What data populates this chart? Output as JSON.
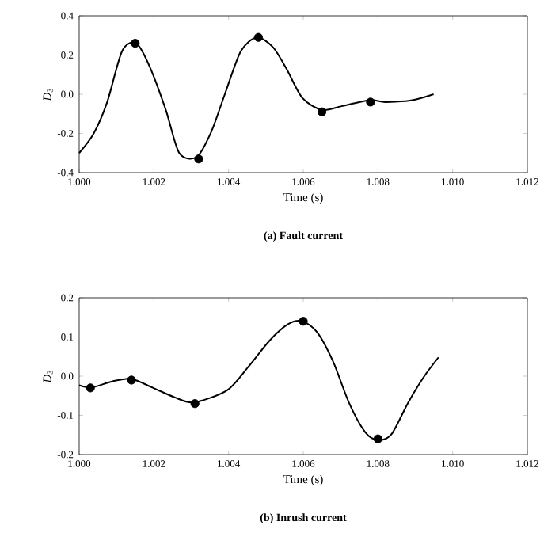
{
  "chart_data": [
    {
      "type": "line",
      "title": "(a) Fault current",
      "xlabel": "Time (s)",
      "ylabel": "*D*$_{3}$",
      "xlim": [
        1.0,
        1.012
      ],
      "ylim": [
        -0.4,
        0.4
      ],
      "xticks": [
        {
          "value": 1.0,
          "label": "1.000"
        },
        {
          "value": 1.002,
          "label": "1.002"
        },
        {
          "value": 1.004,
          "label": "1.004"
        },
        {
          "value": 1.006,
          "label": "1.006"
        },
        {
          "value": 1.008,
          "label": "1.008"
        },
        {
          "value": 1.01,
          "label": "1.010"
        },
        {
          "value": 1.012,
          "label": "1.012"
        }
      ],
      "yticks": [
        -0.4,
        -0.2,
        {
          "value": 0,
          "label": "0.0"
        },
        0.2,
        0.4
      ],
      "series": [
        {
          "color": "#000000",
          "x": [
            1.0,
            1.00039,
            1.00075,
            1.00115,
            1.00153,
            1.00189,
            1.00232,
            1.00268,
            1.00315,
            1.00354,
            1.0039,
            1.00433,
            1.00476,
            1.00519,
            1.00555,
            1.00598,
            1.00651,
            1.00705,
            1.00777,
            1.0082,
            1.00892,
            1.00949
          ],
          "values": [
            -0.3,
            -0.2,
            -0.04,
            0.22,
            0.26,
            0.14,
            -0.08,
            -0.3,
            -0.32,
            -0.19,
            0.0,
            0.22,
            0.29,
            0.24,
            0.13,
            -0.02,
            -0.08,
            -0.06,
            -0.03,
            -0.04,
            -0.03,
            0.0
          ]
        },
        {
          "type": "scatter",
          "color": "#000000",
          "marker": "circle",
          "x": [
            1.0015,
            1.0032,
            1.0048,
            1.0065,
            1.0078
          ],
          "values": [
            0.26,
            -0.33,
            0.29,
            -0.09,
            -0.04
          ]
        }
      ]
    },
    {
      "type": "line",
      "title": "(b) Inrush current",
      "xlabel": "Time (s)",
      "ylabel": "*D*$_{3}$",
      "xlim": [
        1.0,
        1.012
      ],
      "ylim": [
        -0.2,
        0.2
      ],
      "xticks": [
        {
          "value": 1.0,
          "label": "1.000"
        },
        {
          "value": 1.002,
          "label": "1.002"
        },
        {
          "value": 1.004,
          "label": "1.004"
        },
        {
          "value": 1.006,
          "label": "1.006"
        },
        {
          "value": 1.008,
          "label": "1.008"
        },
        {
          "value": 1.01,
          "label": "1.010"
        },
        {
          "value": 1.012,
          "label": "1.012"
        }
      ],
      "yticks": [
        -0.2,
        -0.1,
        {
          "value": 0,
          "label": "0.0"
        },
        0.1,
        0.2
      ],
      "series": [
        {
          "color": "#000000",
          "x": [
            1.0,
            1.00033,
            1.0009,
            1.0014,
            1.00196,
            1.00253,
            1.00307,
            1.00396,
            1.00453,
            1.0051,
            1.0056,
            1.00598,
            1.00638,
            1.0068,
            1.00723,
            1.00766,
            1.00801,
            1.00837,
            1.0088,
            1.00922,
            1.00962
          ],
          "values": [
            -0.023,
            -0.029,
            -0.013,
            -0.007,
            -0.029,
            -0.053,
            -0.067,
            -0.036,
            0.024,
            0.091,
            0.133,
            0.14,
            0.111,
            0.037,
            -0.069,
            -0.143,
            -0.163,
            -0.147,
            -0.069,
            -0.003,
            0.048
          ]
        },
        {
          "type": "scatter",
          "color": "#000000",
          "marker": "circle",
          "x": [
            1.0003,
            1.0014,
            1.0031,
            1.006,
            1.008
          ],
          "values": [
            -0.03,
            -0.01,
            -0.07,
            0.14,
            -0.16
          ]
        }
      ]
    }
  ]
}
